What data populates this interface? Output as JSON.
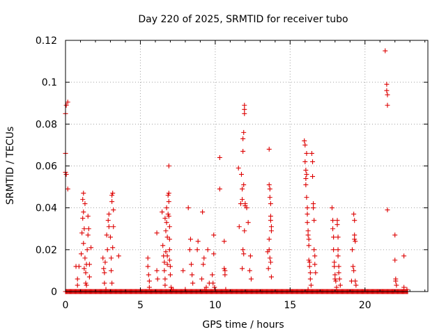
{
  "chart_data": {
    "type": "scatter",
    "title": "Day 220 of 2025, SRMTID for receiver tubo",
    "xlabel": "GPS time / hours",
    "ylabel": "SRMTID / TECUs",
    "xlim": [
      0,
      24.2
    ],
    "ylim": [
      0,
      0.12
    ],
    "xticks": [
      0,
      5,
      10,
      15,
      20
    ],
    "xtick_labels": [
      "0",
      "5",
      "10",
      "15",
      "20"
    ],
    "yticks": [
      0,
      0.02,
      0.04,
      0.06,
      0.08,
      0.1,
      0.12
    ],
    "ytick_labels": [
      "0",
      "0.02",
      "0.04",
      "0.06",
      "0.08",
      "0.1",
      "0.12"
    ],
    "grid": true,
    "marker": "+",
    "color": "#dd0000",
    "series": [
      {
        "name": "SRMTID",
        "points": [
          [
            0.0,
            0.085
          ],
          [
            0.05,
            0.089
          ],
          [
            0.15,
            0.0905
          ],
          [
            0.0,
            0.066
          ],
          [
            0.0,
            0.057
          ],
          [
            0.05,
            0.056
          ],
          [
            0.15,
            0.049
          ],
          [
            0.1,
            0.0
          ],
          [
            0.7,
            0.012
          ],
          [
            0.8,
            0.006
          ],
          [
            0.8,
            0.003
          ],
          [
            0.9,
            0.012
          ],
          [
            1.05,
            0.018
          ],
          [
            1.1,
            0.028
          ],
          [
            1.15,
            0.035
          ],
          [
            1.15,
            0.044
          ],
          [
            1.2,
            0.047
          ],
          [
            1.2,
            0.038
          ],
          [
            1.25,
            0.03
          ],
          [
            1.2,
            0.023
          ],
          [
            1.3,
            0.042
          ],
          [
            1.3,
            0.016
          ],
          [
            1.35,
            0.009
          ],
          [
            1.4,
            0.013
          ],
          [
            1.4,
            0.003
          ],
          [
            1.45,
            0.02
          ],
          [
            1.5,
            0.027
          ],
          [
            1.5,
            0.036
          ],
          [
            1.55,
            0.03
          ],
          [
            1.6,
            0.013
          ],
          [
            1.6,
            0.007
          ],
          [
            1.7,
            0.021
          ],
          [
            1.25,
            0.011
          ],
          [
            1.35,
            0.004
          ],
          [
            2.5,
            0.016
          ],
          [
            2.55,
            0.011
          ],
          [
            2.6,
            0.009
          ],
          [
            2.6,
            0.004
          ],
          [
            2.65,
            0.014
          ],
          [
            2.7,
            0.001
          ],
          [
            2.75,
            0.027
          ],
          [
            2.8,
            0.02
          ],
          [
            2.85,
            0.034
          ],
          [
            2.9,
            0.031
          ],
          [
            2.9,
            0.037
          ],
          [
            3.0,
            0.026
          ],
          [
            3.05,
            0.016
          ],
          [
            3.05,
            0.01
          ],
          [
            3.1,
            0.004
          ],
          [
            3.1,
            0.043
          ],
          [
            3.1,
            0.046
          ],
          [
            3.15,
            0.047
          ],
          [
            3.2,
            0.039
          ],
          [
            3.2,
            0.031
          ],
          [
            3.15,
            0.021
          ],
          [
            3.55,
            0.017
          ],
          [
            5.5,
            0.016
          ],
          [
            5.5,
            0.012
          ],
          [
            5.55,
            0.008
          ],
          [
            5.6,
            0.002
          ],
          [
            5.6,
            0.005
          ],
          [
            6.1,
            0.01
          ],
          [
            6.15,
            0.006
          ],
          [
            6.1,
            0.028
          ],
          [
            6.45,
            0.038
          ],
          [
            6.5,
            0.022
          ],
          [
            6.55,
            0.017
          ],
          [
            6.6,
            0.014
          ],
          [
            6.6,
            0.01
          ],
          [
            6.65,
            0.006
          ],
          [
            6.65,
            0.003
          ],
          [
            6.7,
            0.019
          ],
          [
            6.75,
            0.04
          ],
          [
            6.75,
            0.033
          ],
          [
            6.8,
            0.026
          ],
          [
            6.8,
            0.013
          ],
          [
            6.85,
            0.046
          ],
          [
            6.85,
            0.037
          ],
          [
            6.9,
            0.06
          ],
          [
            6.9,
            0.047
          ],
          [
            6.9,
            0.043
          ],
          [
            6.9,
            0.036
          ],
          [
            6.95,
            0.031
          ],
          [
            6.95,
            0.025
          ],
          [
            6.95,
            0.02
          ],
          [
            6.95,
            0.015
          ],
          [
            7.0,
            0.012
          ],
          [
            7.0,
            0.008
          ],
          [
            7.05,
            0.002
          ],
          [
            7.1,
            0.001
          ],
          [
            7.2,
            0.001
          ],
          [
            6.65,
            0.035
          ],
          [
            6.7,
            0.029
          ],
          [
            6.8,
            0.017
          ],
          [
            7.85,
            0.01
          ],
          [
            8.0,
            0.001
          ],
          [
            8.2,
            0.04
          ],
          [
            8.3,
            0.02
          ],
          [
            8.35,
            0.025
          ],
          [
            8.4,
            0.013
          ],
          [
            8.45,
            0.008
          ],
          [
            8.5,
            0.004
          ],
          [
            8.8,
            0.02
          ],
          [
            8.85,
            0.024
          ],
          [
            9.1,
            0.006
          ],
          [
            9.15,
            0.038
          ],
          [
            9.2,
            0.013
          ],
          [
            9.25,
            0.016
          ],
          [
            9.3,
            0.001
          ],
          [
            9.4,
            0.002
          ],
          [
            9.5,
            0.02
          ],
          [
            9.6,
            0.004
          ],
          [
            9.8,
            0.008
          ],
          [
            9.85,
            0.004
          ],
          [
            9.9,
            0.027
          ],
          [
            9.9,
            0.018
          ],
          [
            9.95,
            0.002
          ],
          [
            10.3,
            0.064
          ],
          [
            10.3,
            0.049
          ],
          [
            10.6,
            0.024
          ],
          [
            10.6,
            0.011
          ],
          [
            10.65,
            0.01
          ],
          [
            10.65,
            0.008
          ],
          [
            10.7,
            0.001
          ],
          [
            11.55,
            0.059
          ],
          [
            11.6,
            0.031
          ],
          [
            11.7,
            0.042
          ],
          [
            11.75,
            0.056
          ],
          [
            11.8,
            0.049
          ],
          [
            11.8,
            0.044
          ],
          [
            11.85,
            0.067
          ],
          [
            11.85,
            0.073
          ],
          [
            11.9,
            0.076
          ],
          [
            11.9,
            0.051
          ],
          [
            11.95,
            0.085
          ],
          [
            11.95,
            0.089
          ],
          [
            11.95,
            0.087
          ],
          [
            12.0,
            0.042
          ],
          [
            12.0,
            0.041
          ],
          [
            11.95,
            0.029
          ],
          [
            11.9,
            0.018
          ],
          [
            11.85,
            0.02
          ],
          [
            11.8,
            0.011
          ],
          [
            12.1,
            0.04
          ],
          [
            12.2,
            0.033
          ],
          [
            12.3,
            0.01
          ],
          [
            12.35,
            0.017
          ],
          [
            12.4,
            0.006
          ],
          [
            13.6,
            0.068
          ],
          [
            13.6,
            0.051
          ],
          [
            13.65,
            0.049
          ],
          [
            13.65,
            0.045
          ],
          [
            13.7,
            0.042
          ],
          [
            13.7,
            0.036
          ],
          [
            13.7,
            0.034
          ],
          [
            13.75,
            0.031
          ],
          [
            13.75,
            0.029
          ],
          [
            13.6,
            0.025
          ],
          [
            13.6,
            0.02
          ],
          [
            13.65,
            0.016
          ],
          [
            13.7,
            0.014
          ],
          [
            13.75,
            0.007
          ],
          [
            13.55,
            0.011
          ],
          [
            13.5,
            0.019
          ],
          [
            15.95,
            0.072
          ],
          [
            16.0,
            0.07
          ],
          [
            16.0,
            0.062
          ],
          [
            16.05,
            0.058
          ],
          [
            16.05,
            0.054
          ],
          [
            16.05,
            0.051
          ],
          [
            16.1,
            0.066
          ],
          [
            16.1,
            0.056
          ],
          [
            16.1,
            0.045
          ],
          [
            16.15,
            0.04
          ],
          [
            16.15,
            0.037
          ],
          [
            16.2,
            0.029
          ],
          [
            16.2,
            0.027
          ],
          [
            16.25,
            0.025
          ],
          [
            16.25,
            0.022
          ],
          [
            16.25,
            0.015
          ],
          [
            16.3,
            0.014
          ],
          [
            16.3,
            0.012
          ],
          [
            16.35,
            0.009
          ],
          [
            16.35,
            0.006
          ],
          [
            16.4,
            0.003
          ],
          [
            16.2,
            0.001
          ],
          [
            16.45,
            0.066
          ],
          [
            16.5,
            0.062
          ],
          [
            16.5,
            0.055
          ],
          [
            16.55,
            0.042
          ],
          [
            16.55,
            0.04
          ],
          [
            16.6,
            0.034
          ],
          [
            16.6,
            0.02
          ],
          [
            16.65,
            0.017
          ],
          [
            16.65,
            0.013
          ],
          [
            16.7,
            0.009
          ],
          [
            16.15,
            0.033
          ],
          [
            17.8,
            0.04
          ],
          [
            17.85,
            0.034
          ],
          [
            17.85,
            0.03
          ],
          [
            17.9,
            0.026
          ],
          [
            17.9,
            0.02
          ],
          [
            17.95,
            0.014
          ],
          [
            17.95,
            0.012
          ],
          [
            18.0,
            0.008
          ],
          [
            18.0,
            0.006
          ],
          [
            18.05,
            0.005
          ],
          [
            18.1,
            0.002
          ],
          [
            18.15,
            0.034
          ],
          [
            18.15,
            0.032
          ],
          [
            18.2,
            0.026
          ],
          [
            18.2,
            0.02
          ],
          [
            18.2,
            0.017
          ],
          [
            18.25,
            0.012
          ],
          [
            18.25,
            0.009
          ],
          [
            18.3,
            0.006
          ],
          [
            18.35,
            0.003
          ],
          [
            19.1,
            0.005
          ],
          [
            19.15,
            0.02
          ],
          [
            19.2,
            0.012
          ],
          [
            19.25,
            0.01
          ],
          [
            19.25,
            0.037
          ],
          [
            19.3,
            0.034
          ],
          [
            19.3,
            0.027
          ],
          [
            19.3,
            0.025
          ],
          [
            19.35,
            0.024
          ],
          [
            19.35,
            0.005
          ],
          [
            19.4,
            0.003
          ],
          [
            21.35,
            0.115
          ],
          [
            21.45,
            0.099
          ],
          [
            21.45,
            0.096
          ],
          [
            21.5,
            0.094
          ],
          [
            21.5,
            0.089
          ],
          [
            21.5,
            0.039
          ],
          [
            22.0,
            0.027
          ],
          [
            22.0,
            0.015
          ],
          [
            22.05,
            0.006
          ],
          [
            22.05,
            0.005
          ],
          [
            22.1,
            0.003
          ],
          [
            22.6,
            0.017
          ],
          [
            22.6,
            0.002
          ],
          [
            22.8,
            0.001
          ]
        ],
        "zero_ranges": [
          [
            0.0,
            22.85
          ]
        ]
      }
    ]
  }
}
